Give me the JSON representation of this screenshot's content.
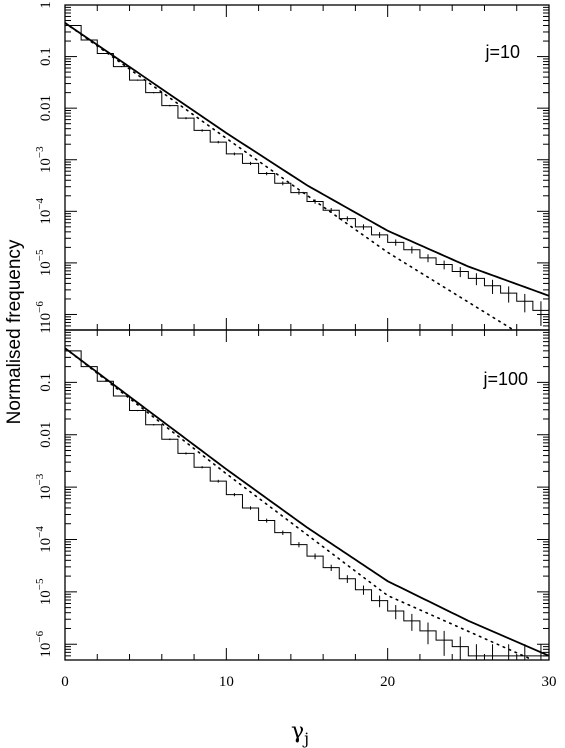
{
  "chart_data": {
    "type": "line",
    "xlabel": "γ",
    "xlabel_sub": "j",
    "ylabel": "Normalised frequency",
    "xlim": [
      0,
      30
    ],
    "x_ticks": [
      "0",
      "10",
      "20",
      "30"
    ],
    "ylim": [
      5e-07,
      1
    ],
    "yscale": "log",
    "y_ticks": [
      {
        "value": 1,
        "base": "1",
        "exp": ""
      },
      {
        "value": 0.1,
        "base": "0.1",
        "exp": ""
      },
      {
        "value": 0.01,
        "base": "0.01",
        "exp": ""
      },
      {
        "value": 0.001,
        "base": "10",
        "exp": "−3"
      },
      {
        "value": 0.0001,
        "base": "10",
        "exp": "−4"
      },
      {
        "value": 1e-05,
        "base": "10",
        "exp": "−5"
      },
      {
        "value": 1e-06,
        "base": "10",
        "exp": "−6"
      }
    ],
    "panels": [
      {
        "label": "j=10",
        "histogram": {
          "bin_width": 1,
          "bin_start": 0,
          "values": [
            0.4,
            0.21,
            0.115,
            0.064,
            0.035,
            0.02,
            0.0112,
            0.0064,
            0.0037,
            0.0022,
            0.0013,
            0.00085,
            0.00054,
            0.00035,
            0.00023,
            0.000155,
            0.000105,
            7.2e-05,
            5e-05,
            3.5e-05,
            2.5e-05,
            1.8e-05,
            1.25e-05,
            9.3e-06,
            6.8e-06,
            5e-06,
            3.6e-06,
            2.6e-06,
            1.8e-06,
            1.2e-06
          ],
          "errors": [
            0.004,
            0.003,
            0.002,
            0.0015,
            0.001,
            0.0006,
            0.0004,
            0.0003,
            0.0002,
            0.00012,
            8e-05,
            6e-05,
            4e-05,
            3e-05,
            2e-05,
            1.5e-05,
            1.1e-05,
            8e-06,
            6e-06,
            4.5e-06,
            3.5e-06,
            2.8e-06,
            2.2e-06,
            1.8e-06,
            1.5e-06,
            1.3e-06,
            1.1e-06,
            9e-07,
            7e-07,
            6e-07
          ]
        },
        "solid_fit": [
          [
            0,
            0.45
          ],
          [
            10,
            0.0033
          ],
          [
            15,
            0.00032
          ],
          [
            20,
            4.2e-05
          ],
          [
            25,
            8.5e-06
          ],
          [
            30,
            2.3e-06
          ]
        ],
        "dotted_fit": [
          [
            0,
            0.45
          ],
          [
            10,
            0.0026
          ],
          [
            20,
            1.6e-05
          ],
          [
            27.8,
            5e-07
          ]
        ]
      },
      {
        "label": "j=100",
        "histogram": {
          "bin_width": 1,
          "bin_start": 0,
          "values": [
            0.4,
            0.2,
            0.105,
            0.055,
            0.029,
            0.0155,
            0.0082,
            0.0044,
            0.0024,
            0.0013,
            0.00072,
            0.0004,
            0.00023,
            0.000135,
            8e-05,
            4.8e-05,
            2.9e-05,
            1.78e-05,
            1.1e-05,
            6.8e-06,
            4.3e-06,
            2.8e-06,
            1.8e-06,
            1.2e-06,
            9e-07,
            6e-07,
            6e-07,
            6e-07,
            6e-07,
            6e-07
          ],
          "errors": [
            0.004,
            0.003,
            0.002,
            0.0012,
            0.0008,
            0.0005,
            0.0003,
            0.0002,
            0.00012,
            8e-05,
            5e-05,
            3e-05,
            2e-05,
            1.3e-05,
            9e-06,
            6e-06,
            4e-06,
            3e-06,
            2.2e-06,
            1.7e-06,
            1.3e-06,
            1e-06,
            8e-07,
            6e-07,
            5e-07,
            4e-07,
            4e-07,
            4e-07,
            4e-07,
            4e-07
          ]
        },
        "solid_fit": [
          [
            0,
            0.45
          ],
          [
            10,
            0.0022
          ],
          [
            15,
            0.00017
          ],
          [
            20,
            1.6e-05
          ],
          [
            25,
            2.8e-06
          ],
          [
            30,
            6e-07
          ]
        ],
        "dotted_fit": [
          [
            0,
            0.45
          ],
          [
            10,
            0.0018
          ],
          [
            20,
            8.5e-06
          ],
          [
            29,
            5e-07
          ]
        ]
      }
    ]
  }
}
